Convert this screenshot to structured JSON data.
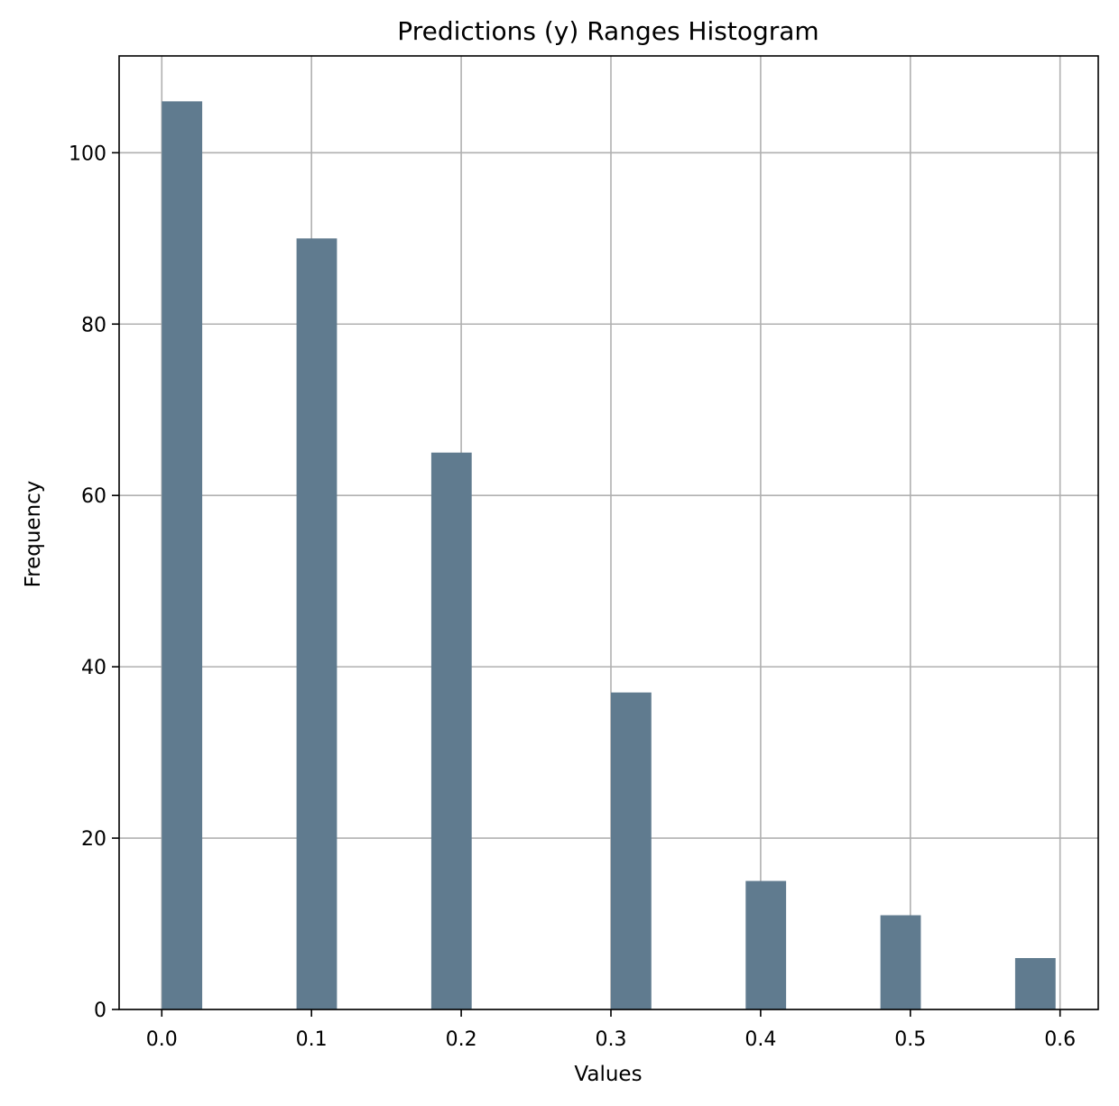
{
  "chart_data": {
    "type": "bar",
    "title": "Predictions (y) Ranges Histogram",
    "xlabel": "Values",
    "ylabel": "Frequency",
    "bins": [
      {
        "x0": 0.0,
        "x1": 0.027,
        "value": 106
      },
      {
        "x0": 0.09,
        "x1": 0.117,
        "value": 90
      },
      {
        "x0": 0.18,
        "x1": 0.207,
        "value": 65
      },
      {
        "x0": 0.3,
        "x1": 0.327,
        "value": 37
      },
      {
        "x0": 0.39,
        "x1": 0.417,
        "value": 15
      },
      {
        "x0": 0.48,
        "x1": 0.507,
        "value": 11
      },
      {
        "x0": 0.57,
        "x1": 0.597,
        "value": 6
      }
    ],
    "xlim": [
      -0.0285,
      0.6255
    ],
    "ylim": [
      0,
      111.3
    ],
    "xticks": [
      0.0,
      0.1,
      0.2,
      0.3,
      0.4,
      0.5,
      0.6
    ],
    "xtick_labels": [
      "0.0",
      "0.1",
      "0.2",
      "0.3",
      "0.4",
      "0.5",
      "0.6"
    ],
    "yticks": [
      0,
      20,
      40,
      60,
      80,
      100
    ],
    "ytick_labels": [
      "0",
      "20",
      "40",
      "60",
      "80",
      "100"
    ],
    "grid": true,
    "bar_color": "#607b8f",
    "grid_color": "#b0b0b0"
  }
}
